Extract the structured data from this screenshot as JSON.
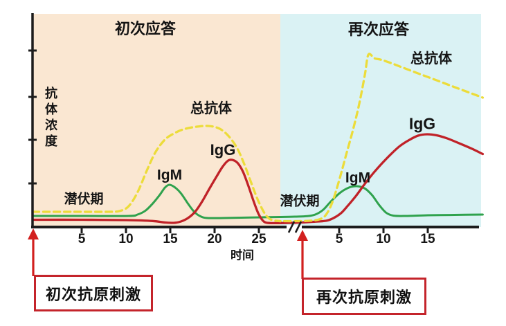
{
  "colors": {
    "page_bg": "#ffffff",
    "primary_region_bg": "#fae7d2",
    "secondary_region_bg": "#daf2f4",
    "axis": "#1c1c1c",
    "total_curve": "#ecdc3a",
    "igm_curve": "#2fa24d",
    "igg_curve": "#c02228",
    "arrow_red": "#d2201f",
    "callout_border": "#c4242b",
    "text": "#141414"
  },
  "chart_data": {
    "type": "line",
    "title_primary": "初次应答",
    "title_secondary": "再次应答",
    "ylabel": "抗体浓度",
    "xlabel": "时间",
    "x_ticks_primary": [
      5,
      10,
      15,
      20,
      25
    ],
    "x_ticks_secondary": [
      5,
      10,
      15
    ],
    "y_ticks_unlabeled_count": 4,
    "axis_break_between_phases": true,
    "ylim_relative": [
      0,
      100
    ],
    "grid": false,
    "legend": "inline-curve-labels",
    "annotations": {
      "latent_primary": "潜伏期",
      "latent_secondary": "潜伏期",
      "total_label_primary": "总抗体",
      "total_label_secondary": "总抗体",
      "igm_label_primary": "IgM",
      "igm_label_secondary": "IgM",
      "igg_label_primary": "IgG",
      "igg_label_secondary": "IgG"
    },
    "series": [
      {
        "id": "total",
        "name": "总抗体",
        "style": "dashed",
        "color": "#ecdc3a",
        "primary": [
          [
            -0.5,
            8.8
          ],
          [
            4,
            8.8
          ],
          [
            8,
            8.8
          ],
          [
            9.3,
            9.3
          ],
          [
            10.3,
            12
          ],
          [
            11.3,
            20
          ],
          [
            12.3,
            32
          ],
          [
            13.3,
            43
          ],
          [
            14.3,
            50
          ],
          [
            15.2,
            53.5
          ],
          [
            16.5,
            56.5
          ],
          [
            18,
            58
          ],
          [
            19.3,
            58.4
          ],
          [
            20.5,
            57
          ],
          [
            21.5,
            53
          ],
          [
            22.5,
            46
          ],
          [
            23.3,
            37
          ],
          [
            24.1,
            26
          ],
          [
            24.9,
            15.5
          ],
          [
            25.7,
            7.5
          ],
          [
            26.4,
            4.2
          ],
          [
            27.4,
            3.4
          ]
        ],
        "secondary": [
          [
            -1.6,
            3.4
          ],
          [
            0,
            3.4
          ],
          [
            1.6,
            3.6
          ],
          [
            2.8,
            4.5
          ],
          [
            3.5,
            7
          ],
          [
            4.2,
            14
          ],
          [
            5,
            27
          ],
          [
            5.8,
            42
          ],
          [
            6.6,
            57
          ],
          [
            7.3,
            72
          ],
          [
            7.9,
            88
          ],
          [
            8.3,
            99.6
          ],
          [
            9,
            97.5
          ],
          [
            10,
            96.3
          ],
          [
            12,
            92.5
          ],
          [
            14,
            88.6
          ],
          [
            16,
            84.8
          ],
          [
            18,
            80.9
          ],
          [
            20,
            77.1
          ],
          [
            21.2,
            74.8
          ]
        ]
      },
      {
        "id": "igm",
        "name": "IgM",
        "style": "solid",
        "color": "#2fa24d",
        "primary": [
          [
            -0.5,
            6.4
          ],
          [
            5,
            6.4
          ],
          [
            10.3,
            6.4
          ],
          [
            11.3,
            7.2
          ],
          [
            12.2,
            9.5
          ],
          [
            13,
            13.5
          ],
          [
            13.8,
            18.5
          ],
          [
            14.4,
            22.8
          ],
          [
            14.9,
            24.4
          ],
          [
            15.5,
            23
          ],
          [
            16.2,
            19.5
          ],
          [
            17,
            13.5
          ],
          [
            17.7,
            8.8
          ],
          [
            18.4,
            6.2
          ],
          [
            19.2,
            5.2
          ],
          [
            21,
            5.2
          ],
          [
            24,
            5.5
          ],
          [
            27.4,
            5.8
          ]
        ],
        "secondary": [
          [
            -1.6,
            5.8
          ],
          [
            0,
            6
          ],
          [
            1.4,
            6.3
          ],
          [
            2.3,
            7.2
          ],
          [
            3.2,
            10
          ],
          [
            4.1,
            15
          ],
          [
            5.1,
            19.8
          ],
          [
            6.1,
            22.8
          ],
          [
            7,
            23.6
          ],
          [
            7.9,
            22.3
          ],
          [
            8.7,
            18.5
          ],
          [
            9.5,
            12.8
          ],
          [
            10.3,
            8.3
          ],
          [
            11.1,
            6.6
          ],
          [
            12.5,
            6.4
          ],
          [
            15,
            6.8
          ],
          [
            18,
            7
          ],
          [
            21.2,
            7.2
          ]
        ]
      },
      {
        "id": "igg",
        "name": "IgG",
        "style": "solid",
        "color": "#c02228",
        "primary": [
          [
            -0.5,
            4.2
          ],
          [
            5,
            4.2
          ],
          [
            10,
            4
          ],
          [
            13,
            3.5
          ],
          [
            14.3,
            2.7
          ],
          [
            15.4,
            2.4
          ],
          [
            16.2,
            3.2
          ],
          [
            17,
            5.2
          ],
          [
            17.8,
            8.8
          ],
          [
            18.6,
            14.8
          ],
          [
            19.4,
            22
          ],
          [
            20.2,
            29
          ],
          [
            20.9,
            34.8
          ],
          [
            21.5,
            38.3
          ],
          [
            22,
            38.8
          ],
          [
            22.6,
            37
          ],
          [
            23.2,
            32
          ],
          [
            23.8,
            24
          ],
          [
            24.4,
            15
          ],
          [
            25,
            7.2
          ],
          [
            25.6,
            3
          ],
          [
            26.3,
            2.3
          ],
          [
            27.4,
            2.3
          ]
        ],
        "secondary": [
          [
            -1.6,
            2.3
          ],
          [
            0,
            2.5
          ],
          [
            2,
            3
          ],
          [
            3.5,
            3.6
          ],
          [
            4.3,
            5
          ],
          [
            5.2,
            8
          ],
          [
            6,
            12.5
          ],
          [
            6.9,
            18
          ],
          [
            7.8,
            24.3
          ],
          [
            8.8,
            30.8
          ],
          [
            9.8,
            36.6
          ],
          [
            10.8,
            41.9
          ],
          [
            11.8,
            46.6
          ],
          [
            12.9,
            50.3
          ],
          [
            13.9,
            52.8
          ],
          [
            14.9,
            53.6
          ],
          [
            16,
            53
          ],
          [
            17.2,
            51.2
          ],
          [
            18.6,
            48.3
          ],
          [
            20,
            45.2
          ],
          [
            21.2,
            42.2
          ]
        ]
      }
    ]
  },
  "callouts": {
    "primary_stimulus": "初次抗原刺激",
    "secondary_stimulus": "再次抗原刺激"
  }
}
